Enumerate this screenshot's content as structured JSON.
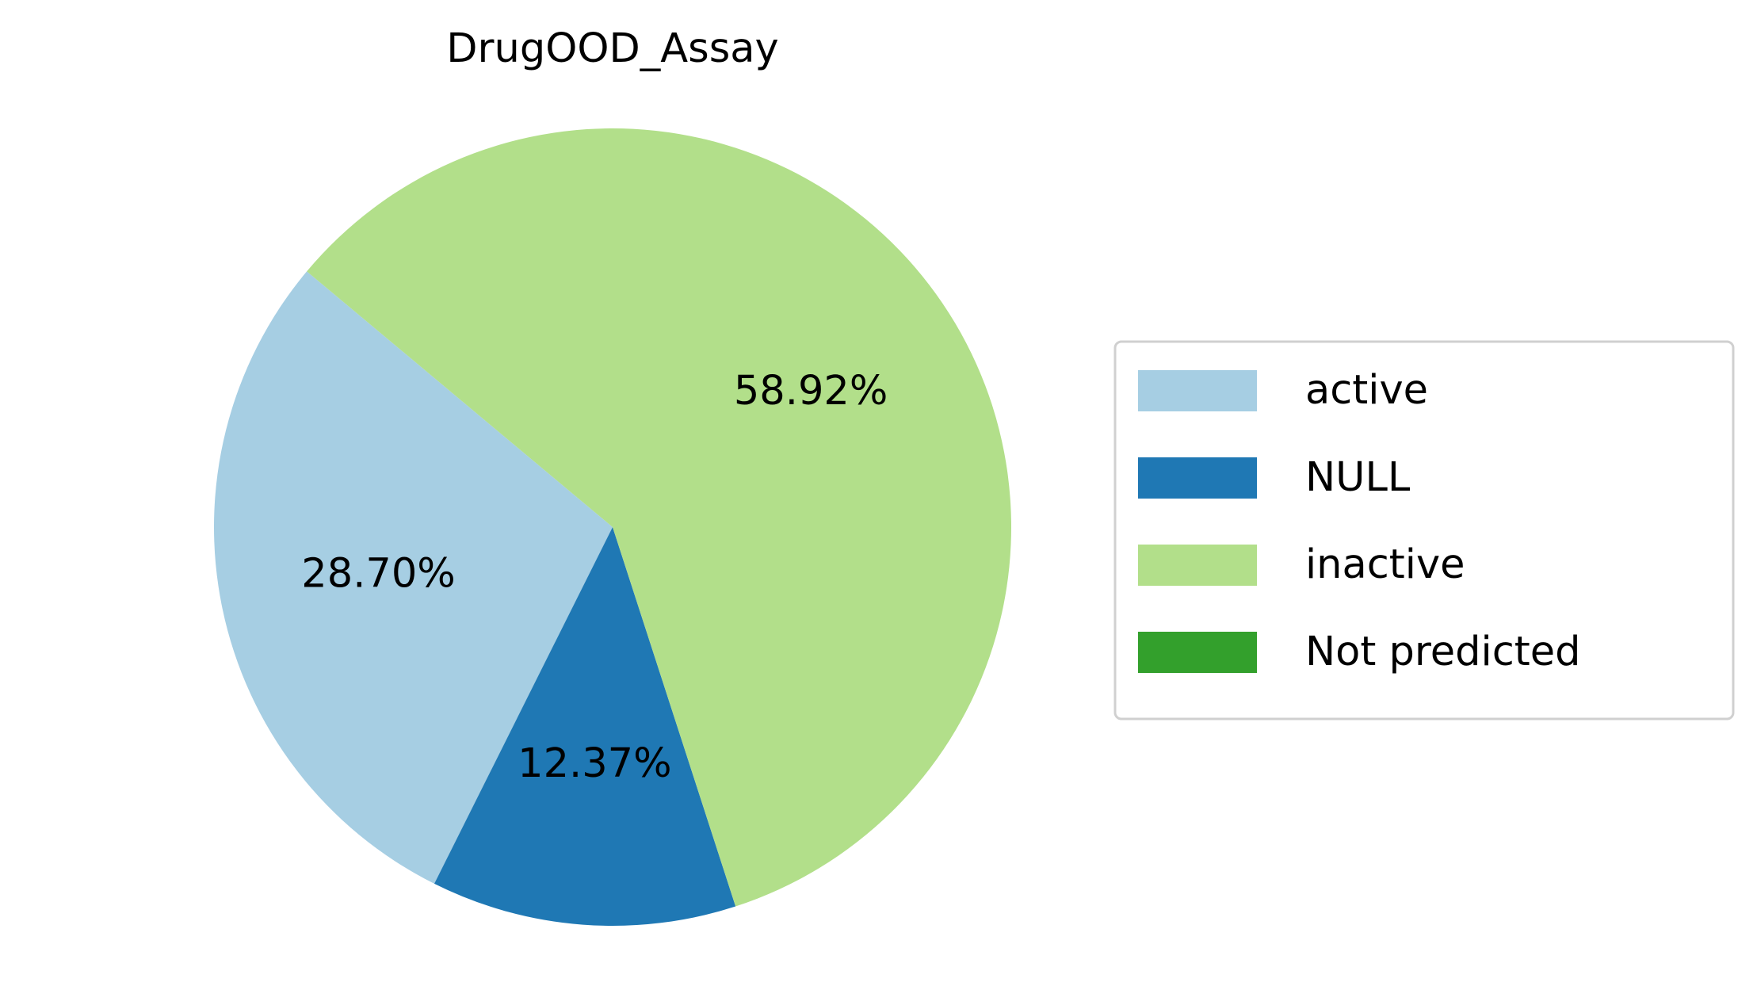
{
  "chart_data": {
    "type": "pie",
    "title": "DrugOOD_Assay",
    "categories": [
      "active",
      "NULL",
      "inactive",
      "Not predicted"
    ],
    "values": [
      28.7,
      12.37,
      58.92,
      0
    ],
    "value_labels": [
      "28.70%",
      "12.37%",
      "58.92%",
      null
    ],
    "colors": [
      "#a6cee3",
      "#1f78b4",
      "#b2df8a",
      "#33a02c"
    ],
    "legend": "right"
  }
}
